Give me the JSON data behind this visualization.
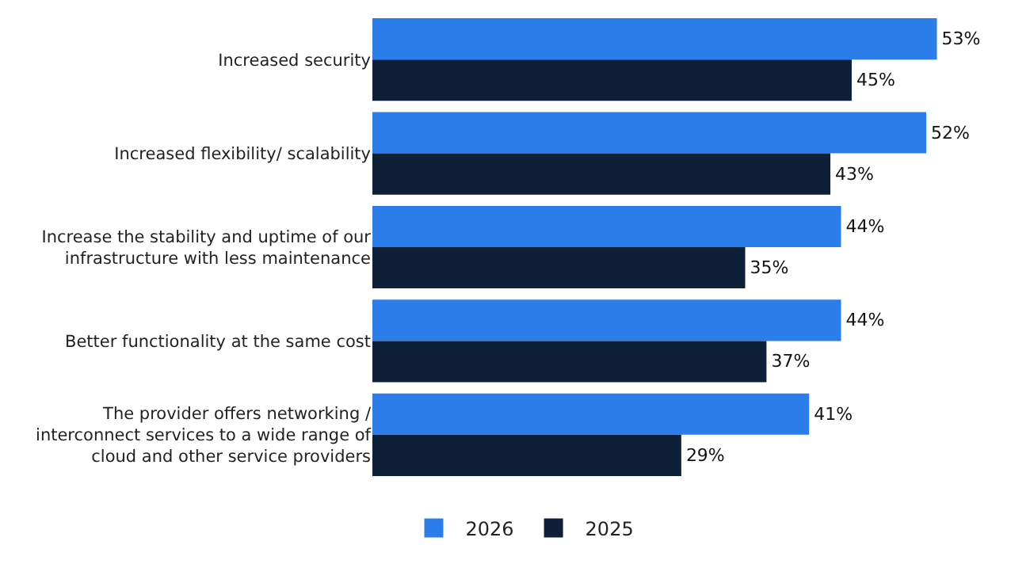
{
  "chart_data": {
    "type": "bar",
    "orientation": "horizontal",
    "categories": [
      "Increased security",
      "Increased flexibility/ scalability",
      "Increase the stability and uptime of our infrastructure with less maintenance",
      "Better functionality at the same cost",
      "The provider offers networking / interconnect services to a wide range of cloud and other service providers"
    ],
    "series": [
      {
        "name": "2026",
        "color": "#2b7de9",
        "values": [
          53,
          52,
          44,
          44,
          41
        ],
        "value_labels": [
          "53%",
          "52%",
          "44%",
          "44%",
          "41%"
        ]
      },
      {
        "name": "2025",
        "color": "#0e1f38",
        "values": [
          45,
          43,
          35,
          37,
          29
        ],
        "value_labels": [
          "45%",
          "43%",
          "35%",
          "37%",
          "29%"
        ]
      }
    ],
    "legend": "bottom",
    "grid": false
  }
}
